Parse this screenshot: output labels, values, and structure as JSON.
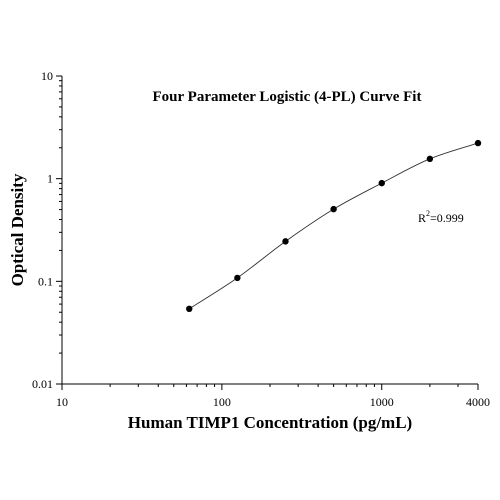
{
  "chart_data": {
    "type": "scatter",
    "title": "Four Parameter Logistic (4-PL) Curve Fit",
    "xlabel": "Human TIMP1 Concentration (pg/mL)",
    "ylabel": "Optical Density",
    "x_scale": "log",
    "y_scale": "log",
    "xlim": [
      10,
      4000
    ],
    "ylim": [
      0.01,
      10
    ],
    "x_ticks": [
      {
        "value": 10,
        "label": "10"
      },
      {
        "value": 100,
        "label": "100"
      },
      {
        "value": 1000,
        "label": "1000"
      },
      {
        "value": 4000,
        "label": "4000"
      }
    ],
    "y_ticks": [
      {
        "value": 0.01,
        "label": "0.01"
      },
      {
        "value": 0.1,
        "label": "0.1"
      },
      {
        "value": 1,
        "label": "1"
      },
      {
        "value": 10,
        "label": "10"
      }
    ],
    "grid": false,
    "series": [
      {
        "x": [
          62.5,
          125,
          250,
          500,
          1000,
          2000,
          4000
        ],
        "y": [
          0.054,
          0.108,
          0.245,
          0.505,
          0.905,
          1.56,
          2.22
        ]
      }
    ],
    "annotation": {
      "base": "R",
      "sup": "2",
      "text": "=0.999"
    },
    "colors": {
      "points": "#000000",
      "curve": "#333333",
      "axes": "#000000"
    }
  }
}
